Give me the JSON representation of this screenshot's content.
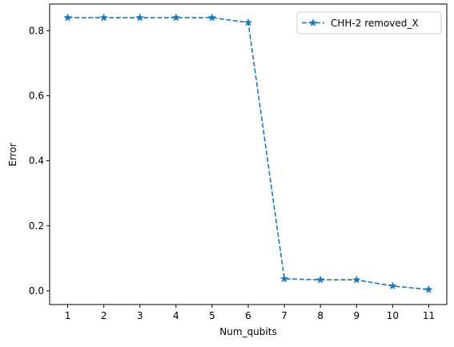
{
  "chart_data": {
    "type": "line",
    "title": "",
    "xlabel": "Num_qubits",
    "ylabel": "Error",
    "x": [
      1,
      2,
      3,
      4,
      5,
      6,
      7,
      8,
      9,
      10,
      11
    ],
    "x_ticks": [
      "1",
      "2",
      "3",
      "4",
      "5",
      "6",
      "7",
      "8",
      "9",
      "10",
      "11"
    ],
    "y_ticks": [
      "0.0",
      "0.2",
      "0.4",
      "0.6",
      "0.8"
    ],
    "xlim": [
      0.5,
      11.5
    ],
    "ylim": [
      -0.042,
      0.882
    ],
    "grid": false,
    "legend_position": "top-right",
    "series": [
      {
        "name": "CHH-2 removed_X",
        "values": [
          0.84,
          0.84,
          0.84,
          0.84,
          0.84,
          0.825,
          0.037,
          0.034,
          0.034,
          0.015,
          0.004
        ],
        "color": "#1f77b4",
        "linestyle": "dashed",
        "marker": "star"
      }
    ]
  }
}
